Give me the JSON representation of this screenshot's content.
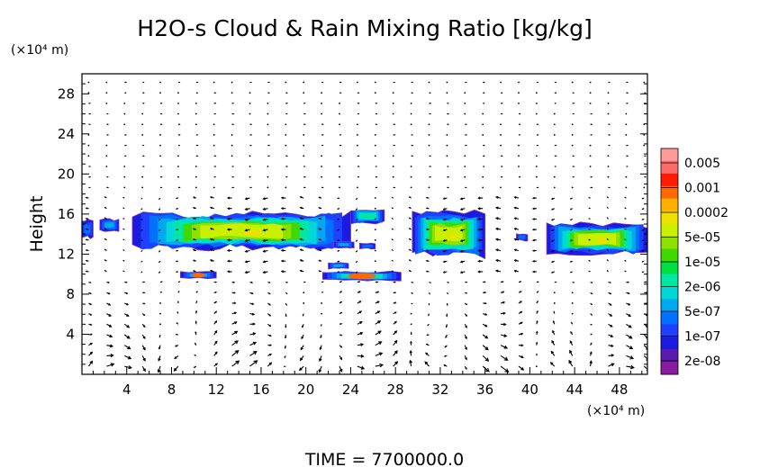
{
  "chart_data": {
    "type": "heatmap",
    "title": "H2O-s Cloud & Rain Mixing Ratio [kg/kg]",
    "ylabel": "Height",
    "y_unit_label": "(×10⁴ m)",
    "x_unit_label": "(×10⁴ m)",
    "x_ticks": [
      "4",
      "8",
      "12",
      "16",
      "20",
      "24",
      "28",
      "32",
      "36",
      "40",
      "44",
      "48"
    ],
    "y_ticks": [
      "4",
      "8",
      "12",
      "16",
      "20",
      "24",
      "28"
    ],
    "xlim": [
      0,
      50.5
    ],
    "ylim": [
      0,
      30
    ],
    "colorbar": {
      "labels": [
        "0.005",
        "0.001",
        "0.0002",
        "5e-05",
        "1e-05",
        "2e-06",
        "5e-07",
        "1e-07",
        "2e-08"
      ],
      "colors_top_to_bottom": [
        "#ff9a9a",
        "#ff6a6a",
        "#ff1a00",
        "#ff6a00",
        "#ffb000",
        "#f0e000",
        "#c8f000",
        "#8ee000",
        "#40d800",
        "#00e040",
        "#00e8a0",
        "#00d8d8",
        "#00a8f0",
        "#0070ff",
        "#2040ff",
        "#1a1ae0",
        "#5a1ab0",
        "#8a1aa0"
      ]
    },
    "cloud_regions": [
      {
        "x_start": 0,
        "x_end": 1,
        "y_bottom": 13.5,
        "y_top": 15.5
      },
      {
        "x_start": 1.6,
        "x_end": 3.3,
        "y_bottom": 14.2,
        "y_top": 15.6
      },
      {
        "x_start": 4.5,
        "x_end": 24,
        "y_bottom": 12.3,
        "y_top": 16.3
      },
      {
        "x_start": 24,
        "x_end": 27,
        "y_bottom": 15.0,
        "y_top": 16.6
      },
      {
        "x_start": 22.5,
        "x_end": 24.3,
        "y_bottom": 12.6,
        "y_top": 13.3
      },
      {
        "x_start": 24.8,
        "x_end": 26.2,
        "y_bottom": 12.5,
        "y_top": 13.1
      },
      {
        "x_start": 29.5,
        "x_end": 36,
        "y_bottom": 11.5,
        "y_top": 16.5
      },
      {
        "x_start": 38.8,
        "x_end": 39.8,
        "y_bottom": 13.3,
        "y_top": 14.1
      },
      {
        "x_start": 41.5,
        "x_end": 50.5,
        "y_bottom": 11.8,
        "y_top": 15.2
      },
      {
        "x_start": 8.8,
        "x_end": 12,
        "y_bottom": 9.5,
        "y_top": 10.3
      },
      {
        "x_start": 21.5,
        "x_end": 28.5,
        "y_bottom": 9.3,
        "y_top": 10.3
      },
      {
        "x_start": 22,
        "x_end": 23.8,
        "y_bottom": 10.5,
        "y_top": 11.2
      }
    ],
    "grid": false,
    "vectors": true
  },
  "footer": {
    "time_label": "TIME  =  7700000.0"
  }
}
